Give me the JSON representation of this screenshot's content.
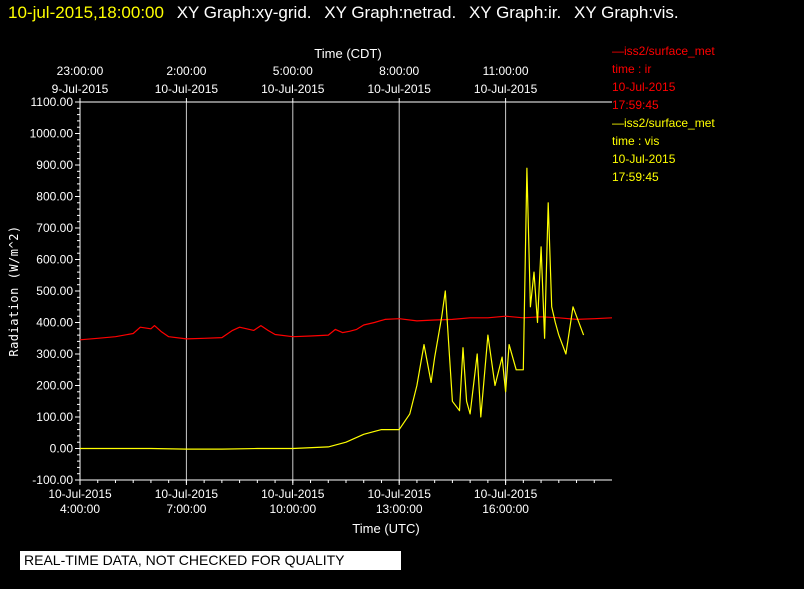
{
  "header": {
    "timestamp": "10-jul-2015,18:00:00",
    "graph_titles": [
      "XY Graph:xy-grid.",
      "XY Graph:netrad.",
      "XY Graph:ir.",
      "XY Graph:vis."
    ]
  },
  "legend": [
    {
      "line": "—iss2/surface_met",
      "vars": "time : ir",
      "date": "10-Jul-2015",
      "time": "17:59:45",
      "color": "#ff0000"
    },
    {
      "line": "—iss2/surface_met",
      "vars": "time : vis",
      "date": "10-Jul-2015",
      "time": "17:59:45",
      "color": "#ffff00"
    }
  ],
  "banner": "REAL-TIME DATA, NOT CHECKED FOR QUALITY",
  "chart_data": {
    "type": "line",
    "ylabel": "Radiation (W/m^2)",
    "xlabel_bottom": "Time (UTC)",
    "xlabel_top": "Time (CDT)",
    "ylim": [
      -100,
      1100
    ],
    "xlim": [
      4.0,
      19.0
    ],
    "x_units": "hours UTC on 10-Jul-2015",
    "y_ticks": [
      "-100.00",
      "0.00",
      "100.00",
      "200.00",
      "300.00",
      "400.00",
      "500.00",
      "600.00",
      "700.00",
      "800.00",
      "900.00",
      "1000.00",
      "1100.00"
    ],
    "x_ticks_bottom": [
      {
        "x": 4,
        "date": "10-Jul-2015",
        "time": "4:00:00"
      },
      {
        "x": 7,
        "date": "10-Jul-2015",
        "time": "7:00:00"
      },
      {
        "x": 10,
        "date": "10-Jul-2015",
        "time": "10:00:00"
      },
      {
        "x": 13,
        "date": "10-Jul-2015",
        "time": "13:00:00"
      },
      {
        "x": 16,
        "date": "10-Jul-2015",
        "time": "16:00:00"
      }
    ],
    "x_ticks_top": [
      {
        "x": 4,
        "time": "23:00:00",
        "date": "9-Jul-2015"
      },
      {
        "x": 7,
        "time": "2:00:00",
        "date": "10-Jul-2015"
      },
      {
        "x": 10,
        "time": "5:00:00",
        "date": "10-Jul-2015"
      },
      {
        "x": 13,
        "time": "8:00:00",
        "date": "10-Jul-2015"
      },
      {
        "x": 16,
        "time": "11:00:00",
        "date": "10-Jul-2015"
      }
    ],
    "grid": "vertical lines at major x ticks",
    "series": [
      {
        "name": "ir",
        "color": "#ff0000",
        "x": [
          4.0,
          4.5,
          5.0,
          5.5,
          5.7,
          6.0,
          6.1,
          6.3,
          6.5,
          7.0,
          7.5,
          8.0,
          8.3,
          8.5,
          8.7,
          8.9,
          9.1,
          9.3,
          9.5,
          10.0,
          10.5,
          11.0,
          11.2,
          11.4,
          11.6,
          11.8,
          12.0,
          12.3,
          12.6,
          13.0,
          13.5,
          14.0,
          14.5,
          15.0,
          15.5,
          16.0,
          16.5,
          17.0,
          17.5,
          18.0,
          18.5,
          19.0
        ],
        "y": [
          345,
          350,
          355,
          365,
          385,
          380,
          390,
          370,
          355,
          348,
          350,
          352,
          375,
          385,
          380,
          375,
          390,
          375,
          362,
          355,
          357,
          360,
          378,
          368,
          372,
          378,
          392,
          400,
          410,
          412,
          405,
          408,
          410,
          415,
          415,
          420,
          415,
          418,
          415,
          410,
          412,
          415
        ]
      },
      {
        "name": "vis",
        "color": "#ffff00",
        "x": [
          4.0,
          5.0,
          6.0,
          7.0,
          8.0,
          9.0,
          10.0,
          11.0,
          11.5,
          12.0,
          12.5,
          13.0,
          13.3,
          13.5,
          13.7,
          13.9,
          14.0,
          14.2,
          14.3,
          14.5,
          14.7,
          14.8,
          14.9,
          15.0,
          15.2,
          15.3,
          15.5,
          15.7,
          15.9,
          16.0,
          16.1,
          16.3,
          16.5,
          16.6,
          16.7,
          16.8,
          16.9,
          17.0,
          17.1,
          17.2,
          17.3,
          17.4,
          17.5,
          17.7,
          17.9,
          18.0,
          18.2
        ],
        "y": [
          0,
          0,
          0,
          -2,
          -2,
          0,
          0,
          5,
          20,
          45,
          60,
          60,
          110,
          200,
          330,
          210,
          290,
          420,
          500,
          150,
          120,
          320,
          150,
          110,
          300,
          100,
          360,
          200,
          290,
          180,
          330,
          250,
          250,
          890,
          450,
          560,
          400,
          640,
          350,
          780,
          450,
          400,
          360,
          300,
          450,
          420,
          360
        ]
      }
    ]
  }
}
